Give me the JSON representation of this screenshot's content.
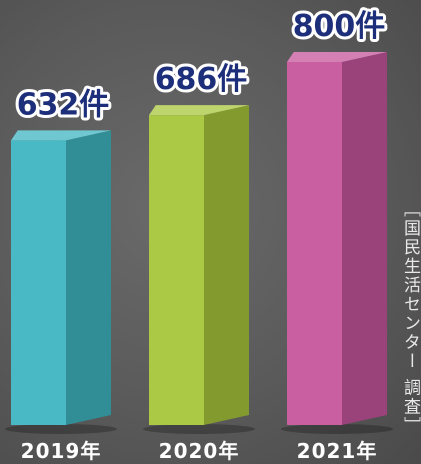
{
  "chart_data": {
    "type": "bar",
    "categories": [
      "2019年",
      "2020年",
      "2021年"
    ],
    "values": [
      632,
      686,
      800
    ],
    "value_labels": [
      "632件",
      "686件",
      "800件"
    ],
    "ylim": [
      0,
      800
    ],
    "colors": [
      "#3fb6c2",
      "#a8c63c",
      "#c6559c"
    ],
    "grid": false,
    "source": "［国民生活センター 調査］"
  }
}
